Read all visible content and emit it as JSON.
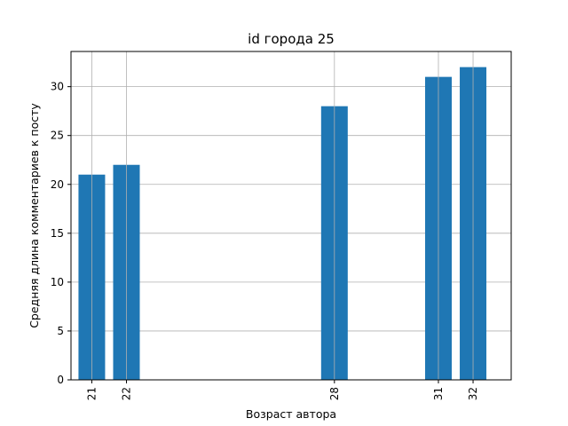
{
  "chart_data": {
    "type": "bar",
    "title": "id города 25",
    "xlabel": "Возраст автора",
    "ylabel": "Средняя длина комментариев к посту",
    "x": [
      31,
      28,
      21,
      22,
      32
    ],
    "categories": [
      "31",
      "28",
      "21",
      "22",
      "32"
    ],
    "values": [
      31,
      28,
      21,
      22,
      32
    ],
    "xlim": [
      20.4,
      33.1
    ],
    "ylim": [
      0,
      33.6
    ],
    "yticks": [
      0,
      5,
      10,
      15,
      20,
      25,
      30
    ],
    "grid": true,
    "bar_color": "#1f77b4"
  }
}
